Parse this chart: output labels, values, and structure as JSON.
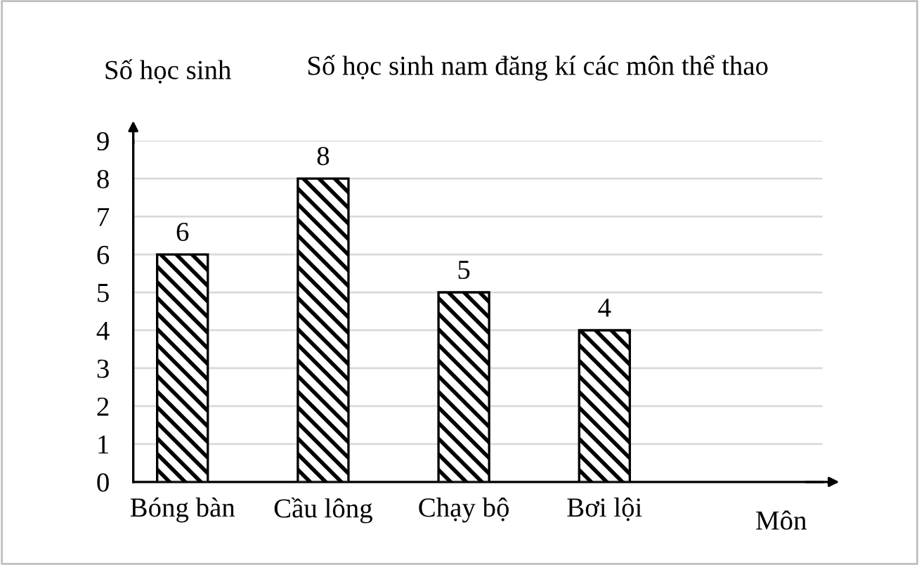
{
  "chart_data": {
    "type": "bar",
    "title": "Số học sinh nam đăng kí các môn thể thao",
    "xlabel": "Môn",
    "ylabel": "Số học sinh",
    "categories": [
      "Bóng bàn",
      "Cầu lông",
      "Chạy bộ",
      "Bơi lội"
    ],
    "values": [
      6,
      8,
      5,
      4
    ],
    "color": "#000000",
    "ylim": [
      0,
      9
    ],
    "yticks": [
      0,
      1,
      2,
      3,
      4,
      5,
      6,
      7,
      8,
      9
    ],
    "grid": "y",
    "data_labels": true
  }
}
